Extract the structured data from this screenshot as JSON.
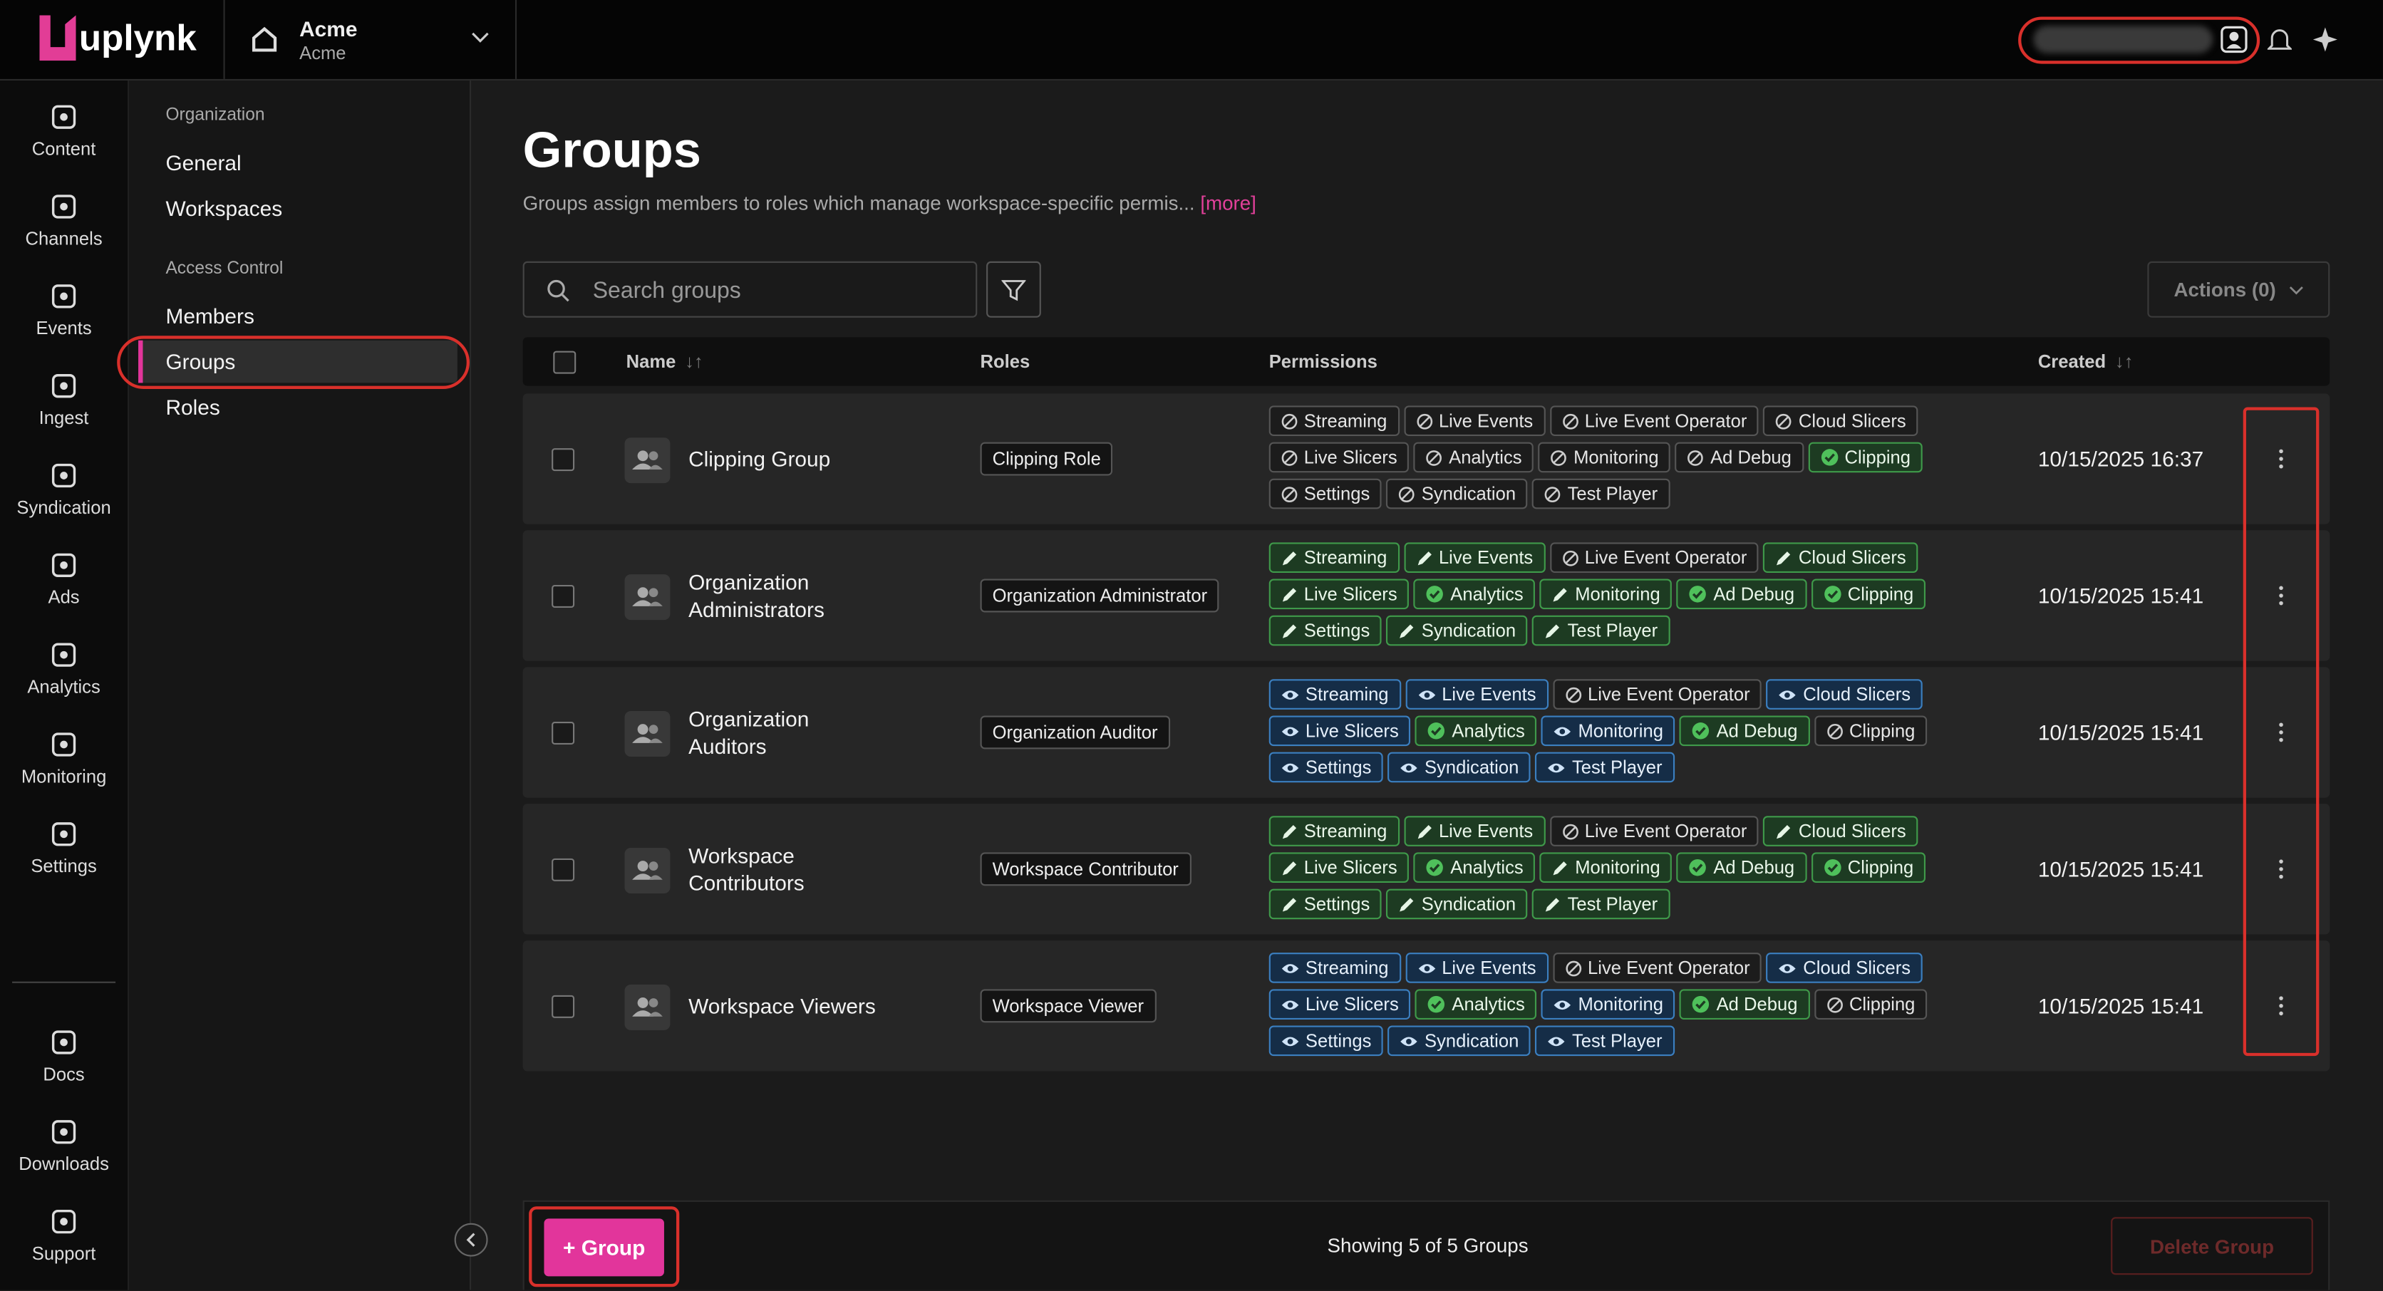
{
  "brand": "uplynk",
  "org": {
    "name": "Acme",
    "sub": "Acme"
  },
  "rail": {
    "items": [
      "Content",
      "Channels",
      "Events",
      "Ingest",
      "Syndication",
      "Ads",
      "Analytics",
      "Monitoring",
      "Settings"
    ],
    "bottom": [
      "Docs",
      "Downloads",
      "Support"
    ]
  },
  "sidebar": {
    "sections": [
      {
        "title": "Organization",
        "items": [
          {
            "label": "General"
          },
          {
            "label": "Workspaces"
          }
        ]
      },
      {
        "title": "Access Control",
        "items": [
          {
            "label": "Members"
          },
          {
            "label": "Groups",
            "active": true
          },
          {
            "label": "Roles"
          }
        ]
      }
    ]
  },
  "page": {
    "title": "Groups",
    "description": "Groups assign members to roles which manage workspace-specific permis...",
    "more": "[more]",
    "search_placeholder": "Search groups",
    "actions": "Actions (0)"
  },
  "table": {
    "columns": [
      "Name",
      "Roles",
      "Permissions",
      "Created"
    ],
    "rows": [
      {
        "name": "Clipping Group",
        "role": "Clipping Role",
        "created": "10/15/2025 16:37",
        "permissions": [
          {
            "label": "Streaming",
            "state": "none"
          },
          {
            "label": "Live Events",
            "state": "none"
          },
          {
            "label": "Live Event Operator",
            "state": "none"
          },
          {
            "label": "Cloud Slicers",
            "state": "none"
          },
          {
            "label": "Live Slicers",
            "state": "none"
          },
          {
            "label": "Analytics",
            "state": "none"
          },
          {
            "label": "Monitoring",
            "state": "none"
          },
          {
            "label": "Ad Debug",
            "state": "none"
          },
          {
            "label": "Clipping",
            "state": "check"
          },
          {
            "label": "Settings",
            "state": "none"
          },
          {
            "label": "Syndication",
            "state": "none"
          },
          {
            "label": "Test Player",
            "state": "none"
          }
        ]
      },
      {
        "name": "Organization Administrators",
        "role": "Organization Administrator",
        "created": "10/15/2025 15:41",
        "permissions": [
          {
            "label": "Streaming",
            "state": "edit"
          },
          {
            "label": "Live Events",
            "state": "edit"
          },
          {
            "label": "Live Event Operator",
            "state": "none"
          },
          {
            "label": "Cloud Slicers",
            "state": "edit"
          },
          {
            "label": "Live Slicers",
            "state": "edit"
          },
          {
            "label": "Analytics",
            "state": "check"
          },
          {
            "label": "Monitoring",
            "state": "edit"
          },
          {
            "label": "Ad Debug",
            "state": "check"
          },
          {
            "label": "Clipping",
            "state": "check"
          },
          {
            "label": "Settings",
            "state": "edit"
          },
          {
            "label": "Syndication",
            "state": "edit"
          },
          {
            "label": "Test Player",
            "state": "edit"
          }
        ]
      },
      {
        "name": "Organization Auditors",
        "role": "Organization Auditor",
        "created": "10/15/2025 15:41",
        "permissions": [
          {
            "label": "Streaming",
            "state": "view"
          },
          {
            "label": "Live Events",
            "state": "view"
          },
          {
            "label": "Live Event Operator",
            "state": "none"
          },
          {
            "label": "Cloud Slicers",
            "state": "view"
          },
          {
            "label": "Live Slicers",
            "state": "view"
          },
          {
            "label": "Analytics",
            "state": "check"
          },
          {
            "label": "Monitoring",
            "state": "view"
          },
          {
            "label": "Ad Debug",
            "state": "check"
          },
          {
            "label": "Clipping",
            "state": "none"
          },
          {
            "label": "Settings",
            "state": "view"
          },
          {
            "label": "Syndication",
            "state": "view"
          },
          {
            "label": "Test Player",
            "state": "view"
          }
        ]
      },
      {
        "name": "Workspace Contributors",
        "role": "Workspace Contributor",
        "created": "10/15/2025 15:41",
        "permissions": [
          {
            "label": "Streaming",
            "state": "edit"
          },
          {
            "label": "Live Events",
            "state": "edit"
          },
          {
            "label": "Live Event Operator",
            "state": "none"
          },
          {
            "label": "Cloud Slicers",
            "state": "edit"
          },
          {
            "label": "Live Slicers",
            "state": "edit"
          },
          {
            "label": "Analytics",
            "state": "check"
          },
          {
            "label": "Monitoring",
            "state": "edit"
          },
          {
            "label": "Ad Debug",
            "state": "check"
          },
          {
            "label": "Clipping",
            "state": "check"
          },
          {
            "label": "Settings",
            "state": "edit"
          },
          {
            "label": "Syndication",
            "state": "edit"
          },
          {
            "label": "Test Player",
            "state": "edit"
          }
        ]
      },
      {
        "name": "Workspace Viewers",
        "role": "Workspace Viewer",
        "created": "10/15/2025 15:41",
        "permissions": [
          {
            "label": "Streaming",
            "state": "view"
          },
          {
            "label": "Live Events",
            "state": "view"
          },
          {
            "label": "Live Event Operator",
            "state": "none"
          },
          {
            "label": "Cloud Slicers",
            "state": "view"
          },
          {
            "label": "Live Slicers",
            "state": "view"
          },
          {
            "label": "Analytics",
            "state": "check"
          },
          {
            "label": "Monitoring",
            "state": "view"
          },
          {
            "label": "Ad Debug",
            "state": "check"
          },
          {
            "label": "Clipping",
            "state": "none"
          },
          {
            "label": "Settings",
            "state": "view"
          },
          {
            "label": "Syndication",
            "state": "view"
          },
          {
            "label": "Test Player",
            "state": "view"
          }
        ]
      }
    ]
  },
  "footer": {
    "add": "+ Group",
    "status": "Showing 5 of 5 Groups",
    "delete": "Delete Group"
  }
}
